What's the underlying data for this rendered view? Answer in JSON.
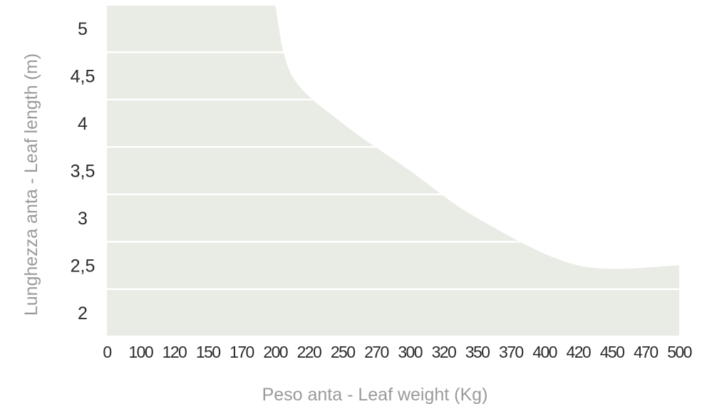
{
  "chart_data": {
    "type": "area",
    "title": "",
    "xlabel": "Peso anta - Leaf weight (Kg)",
    "ylabel": "Lunghezza anta - Leaf length (m)",
    "x_categories": [
      "0",
      "100",
      "120",
      "150",
      "170",
      "200",
      "220",
      "250",
      "270",
      "300",
      "320",
      "350",
      "370",
      "400",
      "420",
      "450",
      "470",
      "500"
    ],
    "y_categories": [
      "2",
      "2,5",
      "3",
      "3,5",
      "4",
      "4,5",
      "5"
    ],
    "series": [
      {
        "values": [
          {
            "x": "200",
            "y": 5
          },
          {
            "x": "210",
            "y": 4.5
          },
          {
            "x": "250",
            "y": 4
          },
          {
            "x": "300",
            "y": 3.5
          },
          {
            "x": "350",
            "y": 3
          },
          {
            "x": "420",
            "y": 2.5
          },
          {
            "x": "500",
            "y": 2.5
          }
        ]
      }
    ],
    "colors": {
      "area": "#e9ebe5",
      "gridline": "#ffffff",
      "text": "#2b2b2b",
      "axis_title": "#9a9a9a"
    },
    "grid": true
  }
}
